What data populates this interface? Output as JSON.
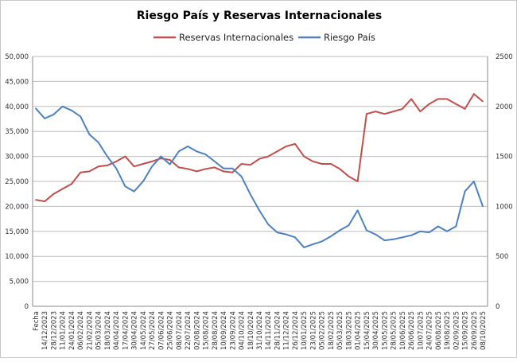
{
  "chart_data": {
    "type": "line",
    "title": "Riesgo País y Reservas Internacionales",
    "xlabel": "",
    "ylabel": "",
    "y_left": {
      "min": 0,
      "max": 50000,
      "step": 5000,
      "ticks": [
        "0",
        "5,000",
        "10,000",
        "15,000",
        "20,000",
        "25,000",
        "30,000",
        "35,000",
        "40,000",
        "45,000",
        "50,000"
      ]
    },
    "y_right": {
      "min": 0,
      "max": 2500,
      "step": 500,
      "ticks": [
        "0",
        "500",
        "1000",
        "1500",
        "2000",
        "2500"
      ]
    },
    "grid": true,
    "legend_position": "top",
    "categories": [
      "Fecha",
      "14/12/2023",
      "28/12/2023",
      "11/01/2024",
      "24/01/2024",
      "06/02/2024",
      "21/02/2024",
      "05/03/2024",
      "18/03/2024",
      "04/04/2024",
      "17/04/2024",
      "30/04/2024",
      "14/05/2024",
      "27/05/2024",
      "07/06/2024",
      "25/06/2024",
      "08/07/2024",
      "22/07/2024",
      "02/08/2024",
      "15/08/2024",
      "28/08/2024",
      "10/09/2024",
      "23/09/2024",
      "04/10/2024",
      "18/10/2024",
      "31/10/2024",
      "14/11/2024",
      "28/11/2024",
      "11/12/2024",
      "26/12/2024",
      "10/01/2025",
      "23/01/2025",
      "05/02/2025",
      "18/02/2025",
      "05/03/2025",
      "18/03/2025",
      "01/04/2025",
      "15/04/2025",
      "30/04/2025",
      "15/05/2025",
      "28/05/2025",
      "10/06/2025",
      "26/06/2025",
      "10/07/2025",
      "24/07/2025",
      "06/08/2025",
      "19/08/2025",
      "02/09/2025",
      "15/09/2025",
      "26/09/2025",
      "08/10/2025"
    ],
    "series": [
      {
        "name": "Reservas Internacionales",
        "axis": "left",
        "color": "#c0504d",
        "values": [
          21300,
          21000,
          22500,
          23500,
          24500,
          26800,
          27000,
          28000,
          28200,
          29000,
          30000,
          28000,
          28500,
          29000,
          29600,
          29300,
          27800,
          27500,
          27000,
          27500,
          27800,
          27000,
          26800,
          28500,
          28300,
          29500,
          30000,
          31000,
          32000,
          32500,
          30000,
          29000,
          28500,
          28500,
          27500,
          26000,
          25000,
          38500,
          39000,
          38500,
          39000,
          39500,
          41500,
          39000,
          40500,
          41500,
          41500,
          40500,
          39500,
          42500,
          41000
        ]
      },
      {
        "name": "Riesgo País",
        "axis": "right",
        "color": "#4f81bd",
        "values": [
          1980,
          1880,
          1920,
          2000,
          1960,
          1900,
          1720,
          1640,
          1500,
          1380,
          1200,
          1150,
          1250,
          1400,
          1500,
          1420,
          1550,
          1600,
          1550,
          1520,
          1450,
          1380,
          1380,
          1300,
          1120,
          960,
          820,
          740,
          720,
          690,
          590,
          620,
          650,
          700,
          760,
          810,
          960,
          760,
          720,
          660,
          670,
          690,
          710,
          750,
          740,
          800,
          750,
          800,
          1150,
          1250,
          1000
        ]
      }
    ]
  }
}
